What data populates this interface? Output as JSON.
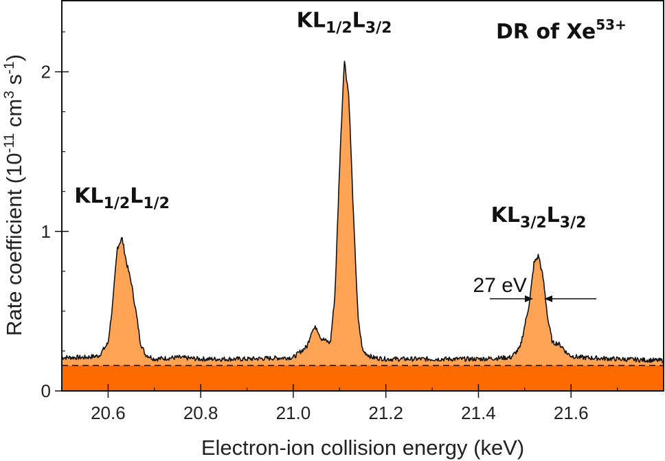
{
  "chart_data": {
    "type": "area",
    "title": "DR of Xe53+",
    "title_parts": {
      "main": "DR of Xe",
      "sup": "53+"
    },
    "xlabel": "Electron-ion collision energy (keV)",
    "ylabel_parts": {
      "a": "Rate coefficient (10",
      "b": "-11",
      "c": " cm",
      "d": "3",
      "e": " s",
      "f": "-1",
      "g": ")"
    },
    "xlim": [
      20.5,
      21.8
    ],
    "ylim": [
      0,
      2.45
    ],
    "x_ticks": [
      "20.6",
      "20.8",
      "21.0",
      "21.2",
      "21.4",
      "21.6"
    ],
    "y_ticks": [
      "0",
      "1",
      "2"
    ],
    "background_level": 0.16,
    "baseline_fill_color": "#ff6a00",
    "peak_fill_color": "#ffa455",
    "line_color": "#111111",
    "series": [
      {
        "x": [
          20.5,
          20.55,
          20.58,
          20.6,
          20.61,
          20.62,
          20.63,
          20.64,
          20.65,
          20.66,
          20.67,
          20.68,
          20.7,
          20.75,
          20.8,
          20.9,
          21.0,
          21.03,
          21.04,
          21.05,
          21.06,
          21.08,
          21.09,
          21.1,
          21.11,
          21.12,
          21.13,
          21.14,
          21.15,
          21.17,
          21.2,
          21.3,
          21.4,
          21.47,
          21.49,
          21.51,
          21.52,
          21.53,
          21.54,
          21.55,
          21.56,
          21.57,
          21.58,
          21.59,
          21.6,
          21.62,
          21.7,
          21.8
        ],
        "y": [
          0.21,
          0.21,
          0.22,
          0.3,
          0.55,
          0.9,
          0.96,
          0.8,
          0.68,
          0.5,
          0.3,
          0.23,
          0.2,
          0.21,
          0.2,
          0.2,
          0.21,
          0.28,
          0.38,
          0.4,
          0.33,
          0.3,
          0.6,
          1.4,
          2.08,
          1.85,
          1.1,
          0.45,
          0.25,
          0.21,
          0.2,
          0.2,
          0.2,
          0.21,
          0.27,
          0.55,
          0.8,
          0.85,
          0.7,
          0.45,
          0.3,
          0.3,
          0.28,
          0.24,
          0.22,
          0.21,
          0.2,
          0.19
        ]
      }
    ],
    "peak_labels": [
      {
        "main": "KL",
        "s1": "1/2",
        "m2": "L",
        "s2": "1/2",
        "x": 20.63,
        "y": 1.18
      },
      {
        "main": "KL",
        "s1": "1/2",
        "m2": "L",
        "s2": "3/2",
        "x": 21.11,
        "y": 2.28
      },
      {
        "main": "KL",
        "s1": "3/2",
        "m2": "L",
        "s2": "3/2",
        "x": 21.53,
        "y": 1.06
      }
    ],
    "annotation": {
      "text": "27 eV",
      "x": 21.53,
      "y": 0.5,
      "width_ev": 27
    },
    "grid": false,
    "legend": "none"
  }
}
